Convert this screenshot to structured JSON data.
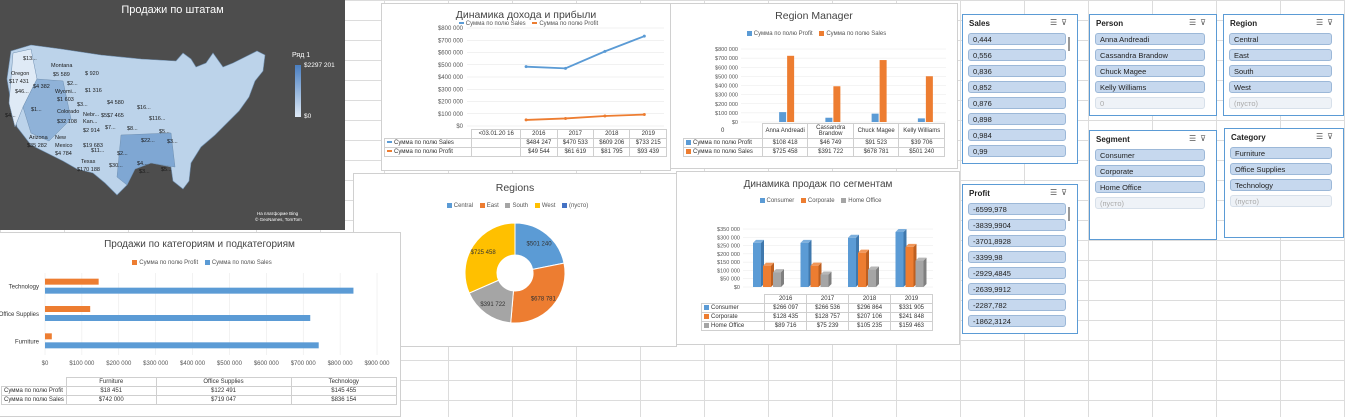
{
  "map": {
    "title": "Продажи по штатам",
    "legend_title": "Ряд 1",
    "legend_max": "$2297 201",
    "legend_min": "$0",
    "credit1": "На платформе Bing",
    "credit2": "© GeoNames, TomTom",
    "labels": [
      {
        "t": "$13..."
      },
      {
        "t": "Montana"
      },
      {
        "t": "$5 589"
      },
      {
        "t": "$ 920"
      },
      {
        "t": "Oregon"
      },
      {
        "t": "$17 431"
      },
      {
        "t": "$4 382"
      },
      {
        "t": "$2..."
      },
      {
        "t": "$46..."
      },
      {
        "t": "Wyomi..."
      },
      {
        "t": "$1 316"
      },
      {
        "t": "$4 580"
      },
      {
        "t": "$1 603"
      },
      {
        "t": "$3..."
      },
      {
        "t": "$5..."
      },
      {
        "t": "$16..."
      },
      {
        "t": "$4..."
      },
      {
        "t": "$1..."
      },
      {
        "t": "Colorado"
      },
      {
        "t": "Nebr..."
      },
      {
        "t": "$7 465"
      },
      {
        "t": "$116..."
      },
      {
        "t": "$32 108"
      },
      {
        "t": "Kan..."
      },
      {
        "t": "$8..."
      },
      {
        "t": "$5..."
      },
      {
        "t": "$7..."
      },
      {
        "t": "$2 914"
      },
      {
        "t": "$22..."
      },
      {
        "t": "$3..."
      },
      {
        "t": "Arizona"
      },
      {
        "t": "New"
      },
      {
        "t": "$35 282"
      },
      {
        "t": "Mexico"
      },
      {
        "t": "$19 683"
      },
      {
        "t": "$4 784"
      },
      {
        "t": "$11..."
      },
      {
        "t": "$2..."
      },
      {
        "t": "Texas"
      },
      {
        "t": "$170 188"
      },
      {
        "t": "$30..."
      },
      {
        "t": "$4..."
      },
      {
        "t": "$3..."
      },
      {
        "t": "$5..."
      }
    ]
  },
  "income_chart": {
    "title": "Динамика дохода и прибыли",
    "legend": [
      "Сумма по полю Sales",
      "Сумма по полю Profit"
    ],
    "y_ticks": [
      "$800 000",
      "$700 000",
      "$600 000",
      "$500 000",
      "$400 000",
      "$300 000",
      "$200 000",
      "$100 000",
      "$0"
    ],
    "header": [
      "<03.01.20 16",
      "2016",
      "2017",
      "2018",
      "2019"
    ],
    "rows": [
      {
        "name": "Сумма по полю Sales",
        "values": [
          "",
          "$484 247",
          "$470 533",
          "$609 206",
          "$733 215"
        ]
      },
      {
        "name": "Сумма по полю Profit",
        "values": [
          "",
          "$49 544",
          "$61 619",
          "$81 795",
          "$93 439"
        ]
      }
    ]
  },
  "region_manager": {
    "title": "Region Manager",
    "legend": [
      "Сумма по полю Profit",
      "Сумма по полю Sales"
    ],
    "y_ticks": [
      "$800 000",
      "$700 000",
      "$600 000",
      "$500 000",
      "$400 000",
      "$300 000",
      "$200 000",
      "$100 000",
      "$0"
    ],
    "zero_label": "0",
    "categories": [
      "Anna Andreadi",
      "Cassandra Brandow",
      "Chuck Magee",
      "Kelly Williams"
    ],
    "rows": [
      {
        "name": "Сумма по полю Profit",
        "values": [
          "$108 418",
          "$46 749",
          "$91 523",
          "$39 706"
        ]
      },
      {
        "name": "Сумма по полю Sales",
        "values": [
          "$725 458",
          "$391 722",
          "$678 781",
          "$501 240"
        ]
      }
    ]
  },
  "regions": {
    "title": "Regions",
    "legend": [
      "Central",
      "East",
      "South",
      "West",
      "(пусто)"
    ],
    "slices": [
      "$501 240",
      "$678 781",
      "$391 722",
      "$725 458"
    ]
  },
  "segments": {
    "title": "Динамика продаж по сегментам",
    "legend": [
      "Consumer",
      "Corporate",
      "Home Office"
    ],
    "y_ticks": [
      "$350 000",
      "$300 000",
      "$250 000",
      "$200 000",
      "$150 000",
      "$100 000",
      "$50 000",
      "$0"
    ],
    "years": [
      "2016",
      "2017",
      "2018",
      "2019"
    ],
    "rows": [
      {
        "name": "Consumer",
        "values": [
          "$266 097",
          "$266 536",
          "$296 864",
          "$331 905"
        ]
      },
      {
        "name": "Corporate",
        "values": [
          "$128 435",
          "$128 757",
          "$207 106",
          "$241 848"
        ]
      },
      {
        "name": "Home Office",
        "values": [
          "$89 716",
          "$75 239",
          "$105 235",
          "$159 463"
        ]
      }
    ]
  },
  "categories": {
    "title": "Продажи по категориям и подкатегориям",
    "legend": [
      "Сумма по полю Profit",
      "Сумма по полю Sales"
    ],
    "cat_labels": [
      "Technology",
      "Office Supplies",
      "Furniture"
    ],
    "x_ticks": [
      "$0",
      "$100 000",
      "$200 000",
      "$300 000",
      "$400 000",
      "$500 000",
      "$600 000",
      "$700 000",
      "$800 000",
      "$900 000"
    ],
    "header": [
      "Furniture",
      "Office Supplies",
      "Technology"
    ],
    "rows": [
      {
        "name": "Сумма по полю Profit",
        "values": [
          "$18 451",
          "$122 491",
          "$145 455"
        ]
      },
      {
        "name": "Сумма по полю Sales",
        "values": [
          "$742 000",
          "$719 047",
          "$836 154"
        ]
      }
    ]
  },
  "slicers": {
    "sales": {
      "title": "Sales",
      "items": [
        "0,444",
        "0,556",
        "0,836",
        "0,852",
        "0,876",
        "0,898",
        "0,984",
        "0,99"
      ]
    },
    "profit": {
      "title": "Profit",
      "items": [
        "-6599,978",
        "-3839,9904",
        "-3701,8928",
        "-3399,98",
        "-2929,4845",
        "-2639,9912",
        "-2287,782",
        "-1862,3124"
      ]
    },
    "person": {
      "title": "Person",
      "items": [
        "Anna Andreadi",
        "Cassandra Brandow",
        "Chuck Magee",
        "Kelly Williams"
      ],
      "empty": "0"
    },
    "region": {
      "title": "Region",
      "items": [
        "Central",
        "East",
        "South",
        "West"
      ],
      "empty": "(пусто)"
    },
    "segment": {
      "title": "Segment",
      "items": [
        "Consumer",
        "Corporate",
        "Home Office"
      ],
      "empty": "(пусто)"
    },
    "category": {
      "title": "Category",
      "items": [
        "Furniture",
        "Office Supplies",
        "Technology"
      ],
      "empty": "(пусто)"
    }
  },
  "colors": {
    "blue": "#5b9bd5",
    "orange": "#ed7d31",
    "gray": "#a5a5a5",
    "yellow": "#ffc000",
    "mapbg": "#4d4d4d"
  },
  "chart_data": [
    {
      "type": "line",
      "title": "Динамика дохода и прибыли",
      "x": [
        "2016",
        "2017",
        "2018",
        "2019"
      ],
      "series": [
        {
          "name": "Сумма по полю Sales",
          "values": [
            484247,
            470533,
            609206,
            733215
          ]
        },
        {
          "name": "Сумма по полю Profit",
          "values": [
            49544,
            61619,
            81795,
            93439
          ]
        }
      ],
      "ylim": [
        0,
        800000
      ]
    },
    {
      "type": "bar",
      "title": "Region Manager",
      "categories": [
        "Anna Andreadi",
        "Cassandra Brandow",
        "Chuck Magee",
        "Kelly Williams"
      ],
      "series": [
        {
          "name": "Сумма по полю Profit",
          "values": [
            108418,
            46749,
            91523,
            39706
          ]
        },
        {
          "name": "Сумма по полю Sales",
          "values": [
            725458,
            391722,
            678781,
            501240
          ]
        }
      ],
      "ylim": [
        0,
        800000
      ]
    },
    {
      "type": "pie",
      "title": "Regions",
      "categories": [
        "Central",
        "East",
        "South",
        "West"
      ],
      "values": [
        501240,
        678781,
        391722,
        725458
      ]
    },
    {
      "type": "bar",
      "title": "Динамика продаж по сегментам",
      "categories": [
        "2016",
        "2017",
        "2018",
        "2019"
      ],
      "series": [
        {
          "name": "Consumer",
          "values": [
            266097,
            266536,
            296864,
            331905
          ]
        },
        {
          "name": "Corporate",
          "values": [
            128435,
            128757,
            207106,
            241848
          ]
        },
        {
          "name": "Home Office",
          "values": [
            89716,
            75239,
            105235,
            159463
          ]
        }
      ],
      "ylim": [
        0,
        350000
      ]
    },
    {
      "type": "bar",
      "title": "Продажи по категориям и подкатегориям",
      "categories": [
        "Furniture",
        "Office Supplies",
        "Technology"
      ],
      "series": [
        {
          "name": "Сумма по полю Profit",
          "values": [
            18451,
            122491,
            145455
          ]
        },
        {
          "name": "Сумма по полю Sales",
          "values": [
            742000,
            719047,
            836154
          ]
        }
      ],
      "xlim": [
        0,
        900000
      ]
    }
  ]
}
